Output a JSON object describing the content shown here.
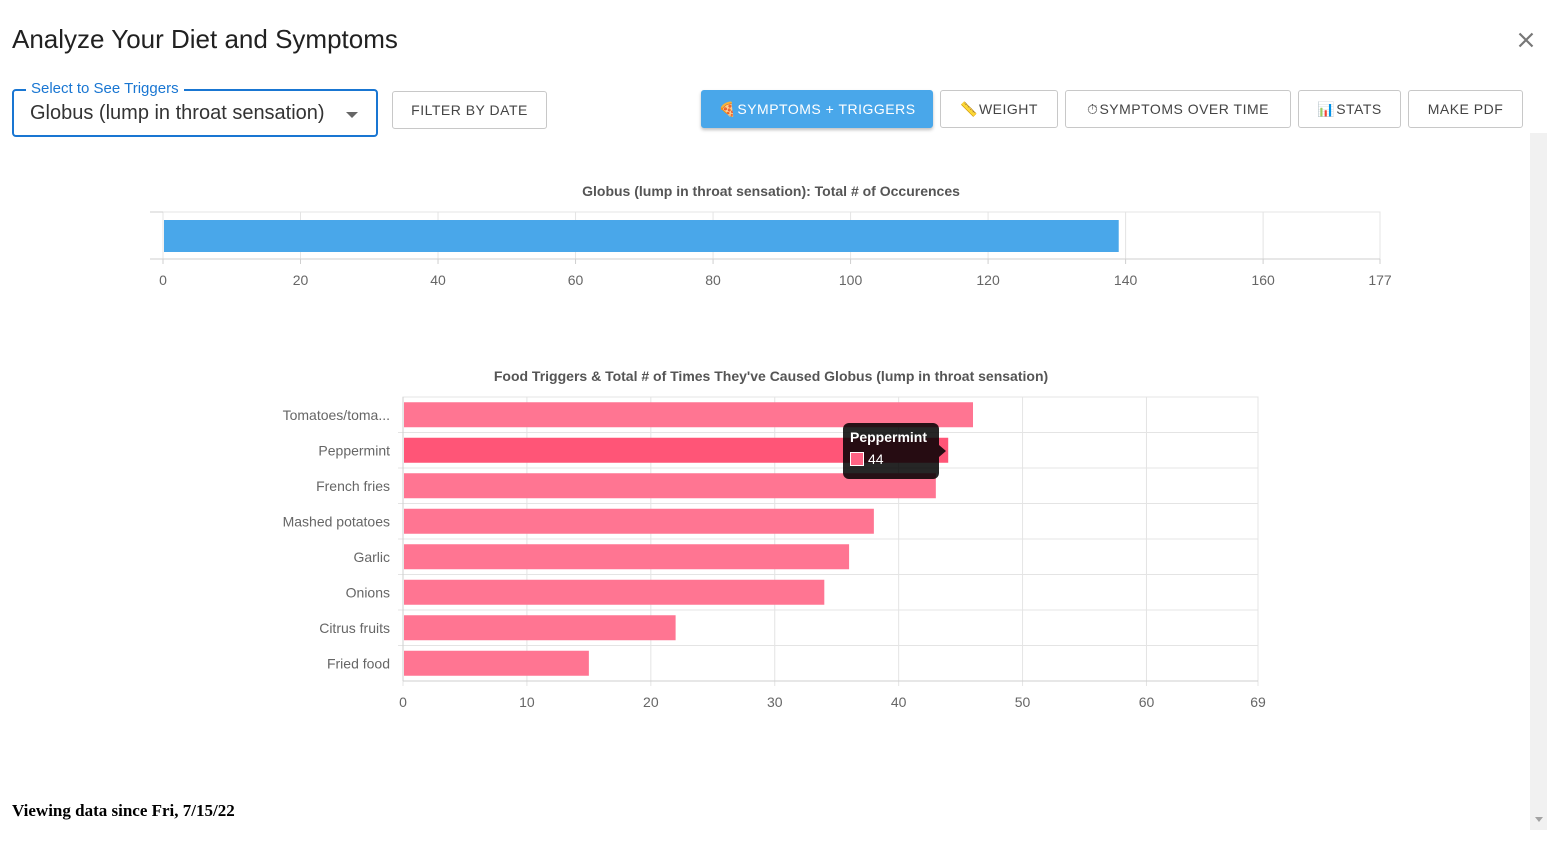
{
  "header": {
    "title": "Analyze Your Diet and Symptoms",
    "close_icon": "close-icon"
  },
  "symptom_select": {
    "label": "Select to See Triggers",
    "value": "Globus (lump in throat sensation)"
  },
  "toolbar": {
    "filter_label": "FILTER BY DATE",
    "symptoms_triggers": {
      "icon": "pizza-icon",
      "glyph": "🍕",
      "label": "SYMPTOMS + TRIGGERS",
      "active": true
    },
    "weight": {
      "icon": "ruler-icon",
      "glyph": "📏",
      "label": "WEIGHT"
    },
    "symptoms_over_time": {
      "icon": "stopwatch-icon",
      "glyph": "⏱",
      "label": "SYMPTOMS OVER TIME"
    },
    "stats": {
      "icon": "bar-chart-icon",
      "glyph": "📊",
      "label": "STATS"
    },
    "make_pdf": {
      "label": "MAKE PDF"
    }
  },
  "chart_data": [
    {
      "type": "bar",
      "orientation": "horizontal",
      "title": "Globus (lump in throat sensation): Total # of Occurences",
      "values": [
        139
      ],
      "color": "#49a7ea",
      "xlim": [
        0,
        177
      ],
      "xticks": [
        "0",
        "20",
        "40",
        "60",
        "80",
        "100",
        "120",
        "140",
        "160",
        "177"
      ],
      "grid": true
    },
    {
      "type": "bar",
      "orientation": "horizontal",
      "title": "Food Triggers & Total # of Times They've Caused Globus (lump in throat sensation)",
      "categories": [
        "Tomatoes/toma...",
        "Peppermint",
        "French fries",
        "Mashed potatoes",
        "Garlic",
        "Onions",
        "Citrus fruits",
        "Fried food"
      ],
      "values": [
        46,
        44,
        43,
        38,
        36,
        34,
        22,
        15
      ],
      "color": "#ff7592",
      "highlight_color": "#ff5577",
      "xlim": [
        0,
        69
      ],
      "xticks": [
        "0",
        "10",
        "20",
        "30",
        "40",
        "50",
        "60",
        "69"
      ],
      "grid": true,
      "tooltip": {
        "title": "Peppermint",
        "value": "44"
      }
    }
  ],
  "footer": {
    "text": "Viewing data since Fri, 7/15/22"
  }
}
